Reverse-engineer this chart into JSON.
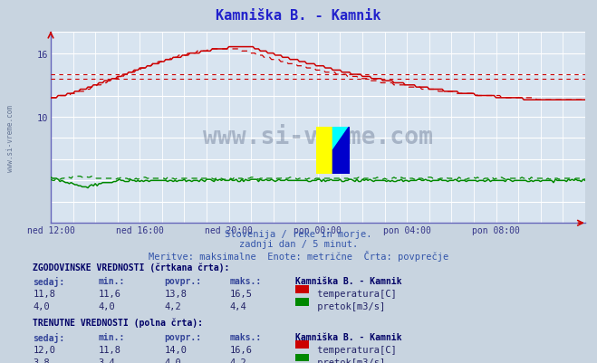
{
  "title": "Kamniška B. - Kamnik",
  "title_color": "#2222cc",
  "bg_color": "#c8d4e0",
  "plot_bg_color": "#d8e4f0",
  "xlabel_ticks": [
    "ned 12:00",
    "ned 16:00",
    "ned 20:00",
    "pon 00:00",
    "pon 04:00",
    "pon 08:00"
  ],
  "xtick_positions": [
    0,
    48,
    96,
    144,
    192,
    240
  ],
  "ytick_vals": [
    10,
    16
  ],
  "ylim": [
    0,
    18
  ],
  "xlim": [
    0,
    288
  ],
  "subtitle1": "Slovenija / reke in morje.",
  "subtitle2": "zadnji dan / 5 minut.",
  "subtitle3": "Meritve: maksimalne  Enote: metrične  Črta: povprečje",
  "table_header1": "ZGODOVINSKE VREDNOSTI (črtkana črta):",
  "table_header2": "TRENUTNE VREDNOSTI (polna črta):",
  "col_headers": [
    "sedaj:",
    "min.:",
    "povpr.:",
    "maks.:"
  ],
  "hist_temp_row": [
    "11,8",
    "11,6",
    "13,8",
    "16,5"
  ],
  "hist_flow_row": [
    "4,0",
    "4,0",
    "4,2",
    "4,4"
  ],
  "curr_temp_row": [
    "12,0",
    "11,8",
    "14,0",
    "16,6"
  ],
  "curr_flow_row": [
    "3,8",
    "3,4",
    "4,0",
    "4,2"
  ],
  "station_label": "Kamniška B. - Kamnik",
  "temp_label": " temperatura[C]",
  "flow_label": " pretok[m3/s]",
  "temp_color": "#cc0000",
  "flow_color": "#008800",
  "watermark_text": "www.si-vreme.com",
  "sidebar_text": "www.si-vreme.com",
  "hist_hline1": 14.0,
  "hist_hline2": 13.6
}
